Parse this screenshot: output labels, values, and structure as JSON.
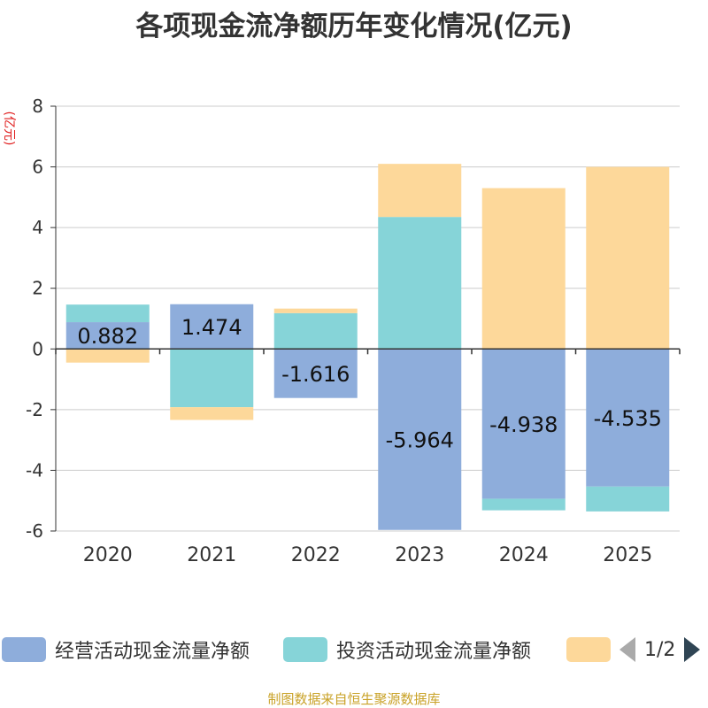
{
  "chart_data": {
    "type": "bar",
    "stacked": true,
    "title": "各项现金流净额历年变化情况(亿元)",
    "ylabel": "(亿元)",
    "xlabel": "",
    "ylim": [
      -6,
      8
    ],
    "yticks": [
      8,
      6,
      4,
      2,
      0,
      -2,
      -4,
      -6
    ],
    "categories": [
      "2020",
      "2021",
      "2022",
      "2023",
      "2024",
      "2025"
    ],
    "series": [
      {
        "name": "经营活动现金流量净额",
        "color": "#8eaddb",
        "values": [
          0.882,
          1.474,
          -1.616,
          -5.964,
          -4.938,
          -4.535
        ],
        "labels": [
          "0.882",
          "1.474",
          "-1.616",
          "-5.964",
          "-4.938",
          "-4.535"
        ]
      },
      {
        "name": "投资活动现金流量净额",
        "color": "#86d4d8",
        "values": [
          0.58,
          -1.92,
          1.18,
          4.35,
          -0.38,
          -0.82
        ]
      },
      {
        "name": "",
        "color": "#fdd89a",
        "values": [
          -0.45,
          -0.42,
          0.15,
          1.75,
          5.3,
          6.0
        ]
      }
    ],
    "legend": {
      "position": "bottom",
      "page": "1/2"
    },
    "source": "制图数据来自恒生聚源数据库"
  }
}
